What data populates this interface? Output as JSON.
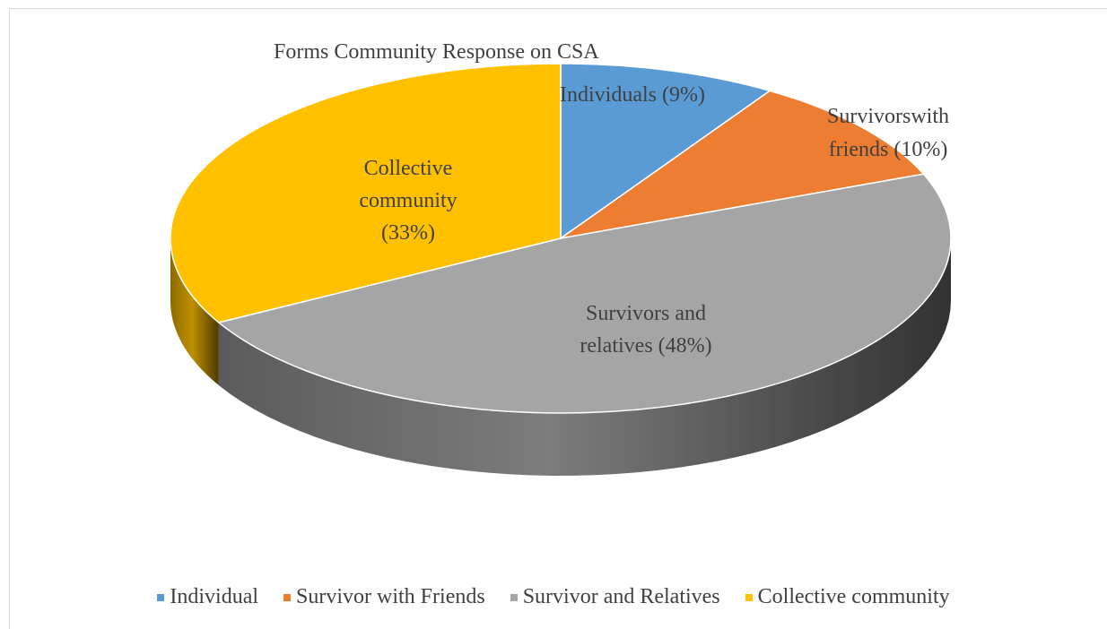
{
  "chart_data": {
    "type": "pie",
    "title": "Forms Community Response on CSA",
    "slices": [
      {
        "legend": "Individual",
        "label": "Individuals (9%)",
        "value": 9,
        "color": "#5b9bd5"
      },
      {
        "legend": "Survivor with Friends",
        "label": "Survivorswith friends (10%)",
        "value": 10,
        "color": "#ed7d31"
      },
      {
        "legend": "Survivor and Relatives",
        "label": "Survivors and relatives (48%)",
        "value": 48,
        "color": "#a5a5a5"
      },
      {
        "legend": "Collective community",
        "label": "Collective community (33%)",
        "value": 33,
        "color": "#ffc000"
      }
    ],
    "legend_position": "bottom"
  }
}
